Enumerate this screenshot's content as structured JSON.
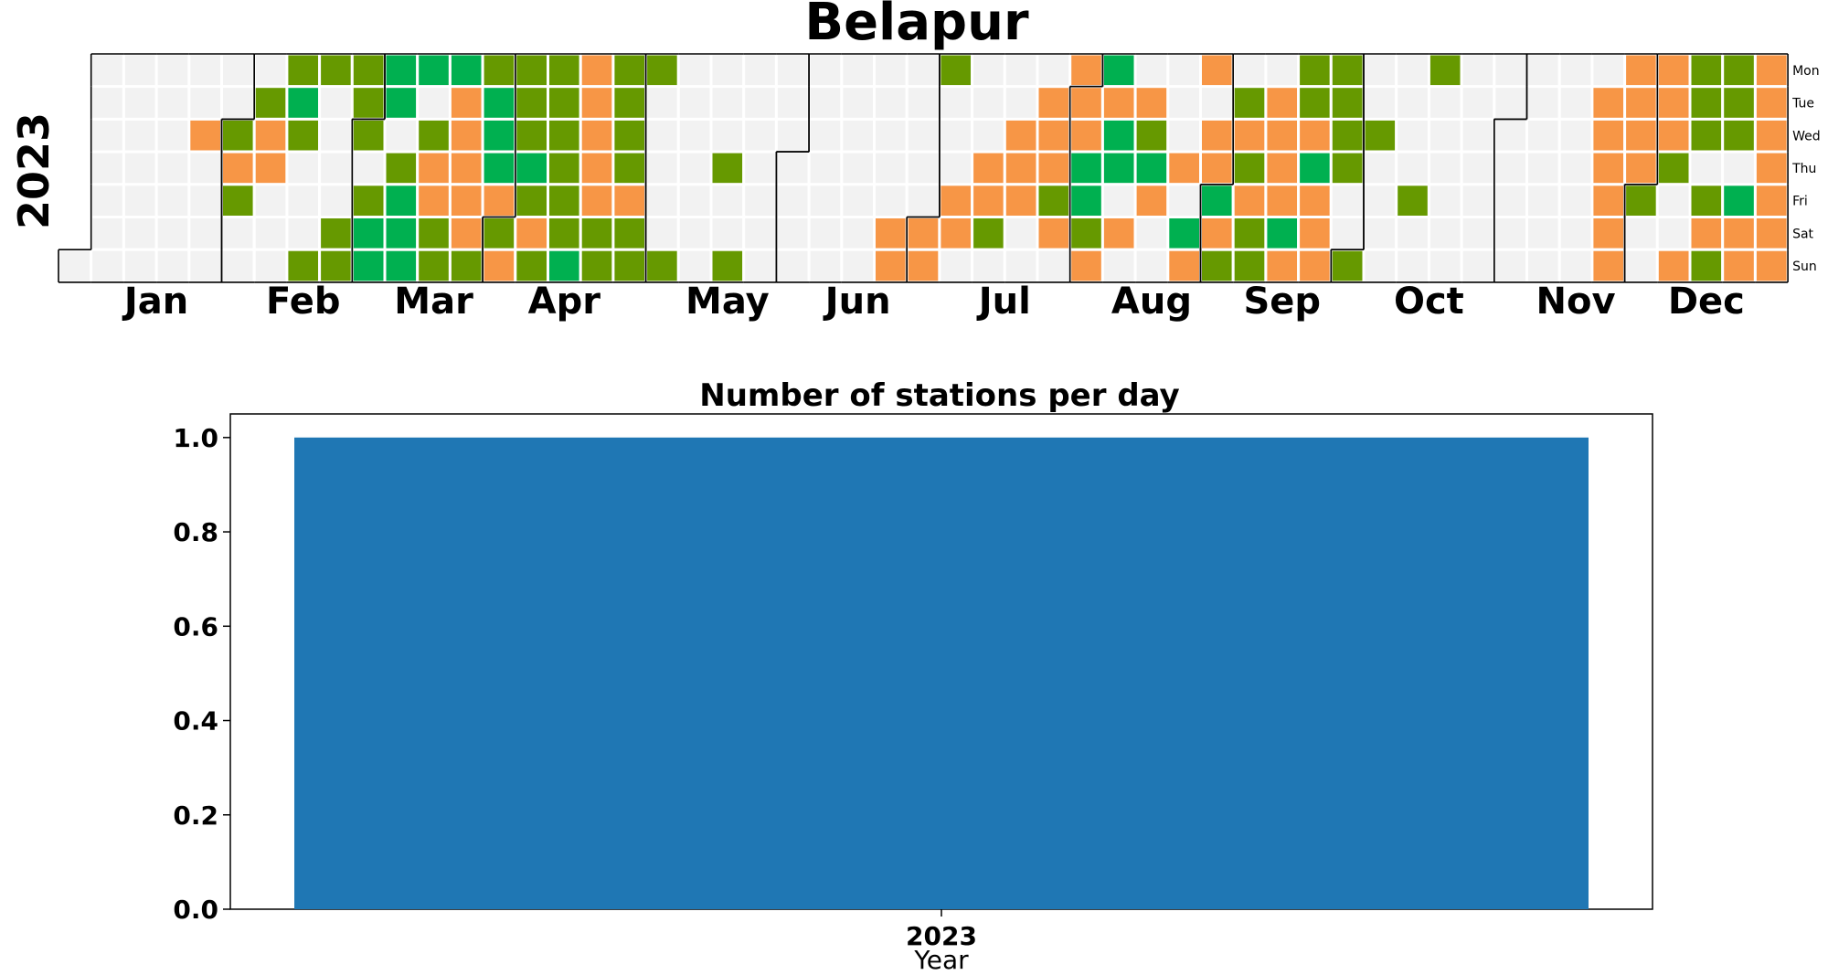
{
  "chart_data": [
    {
      "type": "heatmap",
      "title": "Belapur",
      "year_label": "2023",
      "weekday_labels": [
        "Mon",
        "Tue",
        "Wed",
        "Thu",
        "Fri",
        "Sat",
        "Sun"
      ],
      "month_labels": [
        "Jan",
        "Feb",
        "Mar",
        "Apr",
        "May",
        "Jun",
        "Jul",
        "Aug",
        "Sep",
        "Oct",
        "Nov",
        "Dec"
      ],
      "colors": {
        "no_data": "#f2f2f2",
        "good": "#00b050",
        "satisfactory": "#669900",
        "moderate": "#f79646",
        "poor": "#ff0000",
        "very_poor": "#7b3a3a",
        "month_border": "#000000"
      },
      "category_codes": {
        "0": "no_data",
        "1": "good",
        "2": "satisfactory",
        "3": "moderate",
        "4": "poor",
        "5": "very_poor"
      },
      "week_columns": [
        "000000000000000000000000300000023200023300021200022000022222021111021111023322133333221113232221232222222133333222222322200000200000000002002000000000",
        "000000000000000000000000330000033200033000033200033300033323033311231311030032130000030133033132023232203333132231333222200200200000000200200000000000",
        "000000000000000000000000333333333320033320032220232222013333333333331333330000323203000333323333233233322333223203333132230002000000000000000000000000"
      ],
      "legend": [
        "Mon",
        "Tue",
        "Wed",
        "Thu",
        "Fri",
        "Sat",
        "Sun"
      ]
    },
    {
      "type": "bar",
      "title": "Number of stations per day",
      "categories": [
        "2023"
      ],
      "values": [
        1
      ],
      "xlabel": "Year",
      "ylabel": "",
      "ylim": [
        0,
        1.05
      ],
      "yticks": [
        "0.0",
        "0.2",
        "0.4",
        "0.6",
        "0.8",
        "1.0"
      ],
      "color": "#1f77b4"
    }
  ]
}
